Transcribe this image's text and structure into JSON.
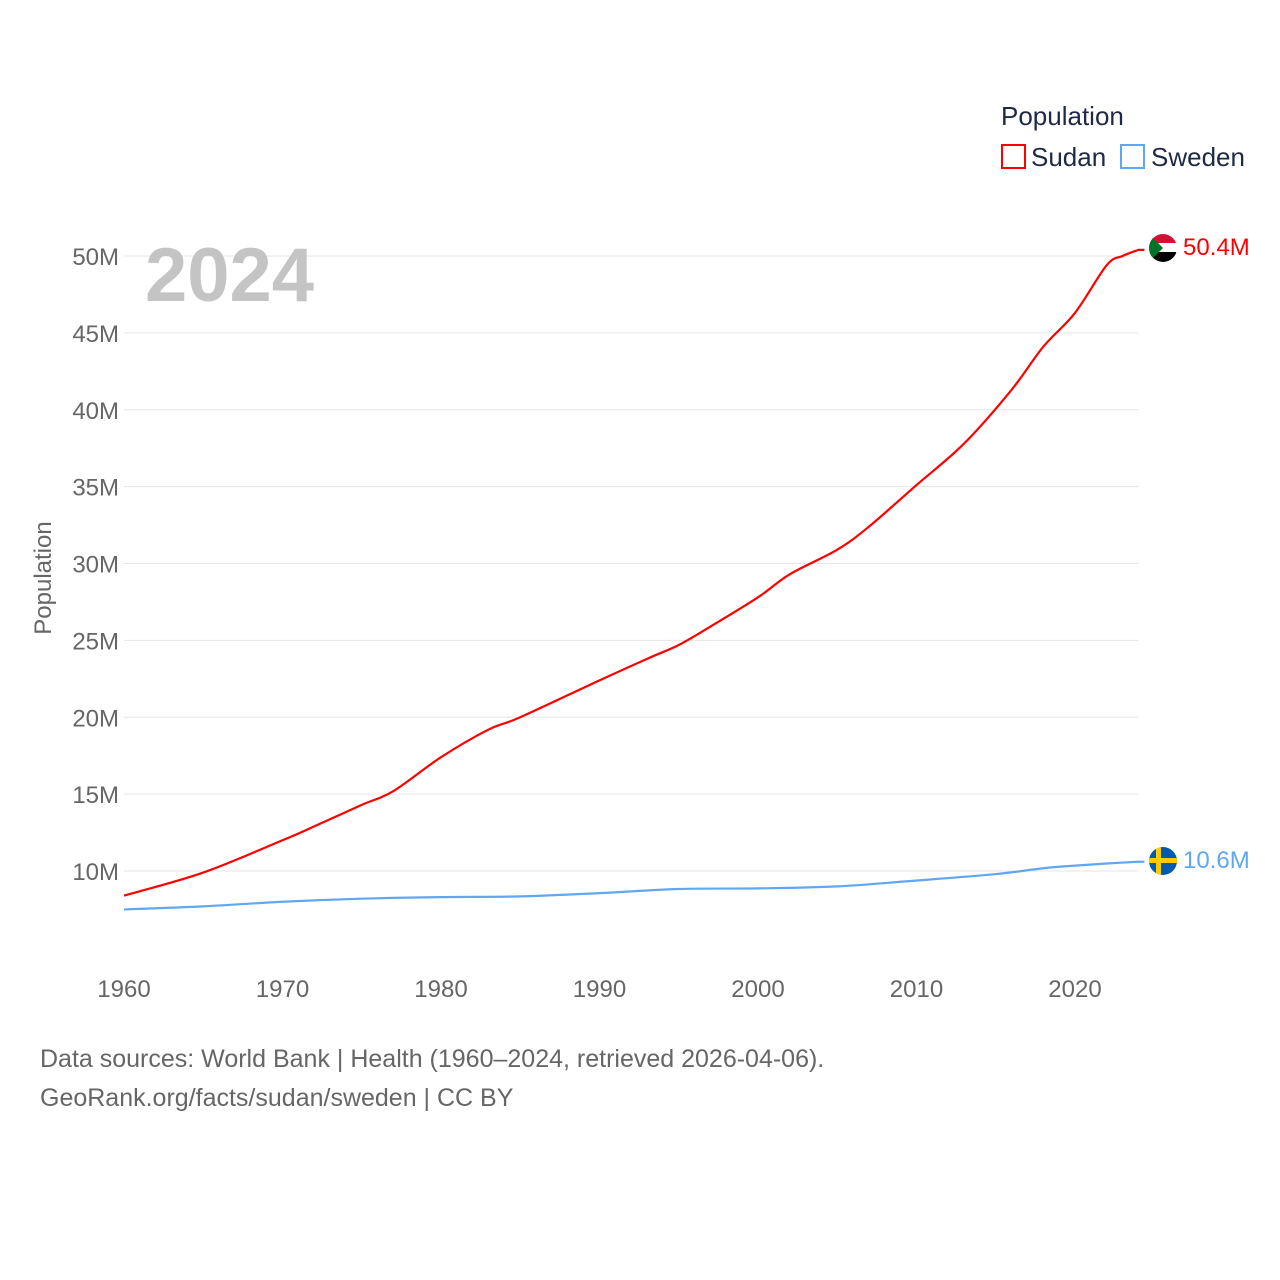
{
  "chart_data": {
    "type": "line",
    "year_label": "2024",
    "ylabel": "Population",
    "xlabel": "",
    "xlim": [
      1960,
      2024
    ],
    "ylim": [
      0,
      52000000
    ],
    "grid": true,
    "legend": {
      "title": "Population",
      "placement": "top-right"
    },
    "x_ticks": [
      1960,
      1970,
      1980,
      1990,
      2000,
      2010,
      2020
    ],
    "x_tick_labels": [
      "1960",
      "1970",
      "1980",
      "1990",
      "2000",
      "2010",
      "2020"
    ],
    "y_ticks": [
      10000000,
      15000000,
      20000000,
      25000000,
      30000000,
      35000000,
      40000000,
      45000000,
      50000000
    ],
    "y_tick_labels": [
      "10M",
      "15M",
      "20M",
      "25M",
      "30M",
      "35M",
      "40M",
      "45M",
      "50M"
    ],
    "series": [
      {
        "name": "Sudan",
        "color": "#ff0000",
        "flag": "sudan-flag",
        "end_label": "50.4M",
        "x": [
          1960,
          1965,
          1970,
          1972,
          1975,
          1977,
          1980,
          1983,
          1985,
          1990,
          1993,
          1995,
          1997,
          2000,
          2002,
          2005,
          2007,
          2010,
          2013,
          2016,
          2018,
          2020,
          2022,
          2023,
          2024
        ],
        "y": [
          8.4,
          9.9,
          12.0,
          12.9,
          14.3,
          15.2,
          17.4,
          19.2,
          20.0,
          22.4,
          23.8,
          24.7,
          25.9,
          27.8,
          29.3,
          30.9,
          32.4,
          35.1,
          37.8,
          41.3,
          44.1,
          46.3,
          49.4,
          50.0,
          50.4
        ]
      },
      {
        "name": "Sweden",
        "color": "#5fa8f0",
        "flag": "sweden-flag",
        "end_label": "10.6M",
        "x": [
          1960,
          1965,
          1970,
          1975,
          1980,
          1985,
          1990,
          1995,
          2000,
          2005,
          2010,
          2015,
          2018,
          2020,
          2022,
          2024
        ],
        "y": [
          7.5,
          7.7,
          8.0,
          8.2,
          8.3,
          8.35,
          8.56,
          8.83,
          8.87,
          9.0,
          9.38,
          9.8,
          10.18,
          10.35,
          10.49,
          10.6
        ]
      }
    ]
  },
  "footer": {
    "line1": "Data sources: World Bank | Health (1960–2024, retrieved 2026-04-06).",
    "line2": "GeoRank.org/facts/sudan/sweden | CC BY"
  }
}
